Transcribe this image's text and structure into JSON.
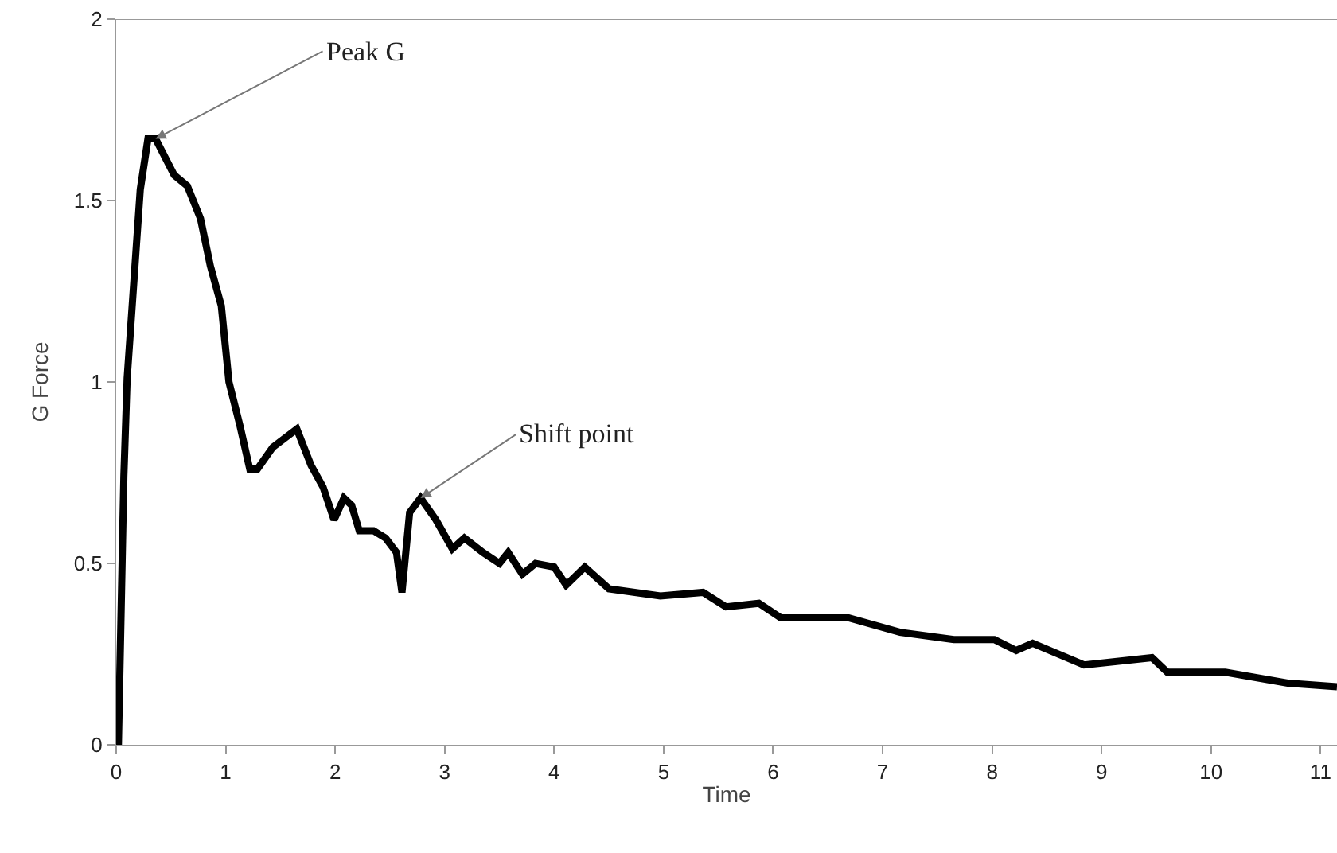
{
  "chart_data": {
    "type": "line",
    "xlabel": "Time",
    "ylabel": "G Force",
    "xlim": [
      0,
      11.15
    ],
    "ylim": [
      0,
      2
    ],
    "xticks": [
      0,
      1,
      2,
      3,
      4,
      5,
      6,
      7,
      8,
      9,
      10,
      11
    ],
    "yticks": [
      0,
      0.5,
      1,
      1.5,
      2
    ],
    "grid": false,
    "legend": false,
    "marker": "none",
    "line_style": "solid",
    "annotations": [
      {
        "text": "Peak G",
        "x": 0.36,
        "y": 1.67
      },
      {
        "text": "Shift point",
        "x": 2.78,
        "y": 0.68
      }
    ],
    "series": [
      {
        "color": "#000000",
        "x": [
          0.02,
          0.07,
          0.1,
          0.22,
          0.29,
          0.36,
          0.53,
          0.65,
          0.77,
          0.86,
          0.96,
          1.03,
          1.13,
          1.22,
          1.29,
          1.43,
          1.65,
          1.78,
          1.89,
          1.99,
          2.08,
          2.15,
          2.22,
          2.35,
          2.46,
          2.56,
          2.61,
          2.68,
          2.78,
          2.92,
          3.07,
          3.18,
          3.35,
          3.5,
          3.58,
          3.71,
          3.83,
          4.0,
          4.11,
          4.28,
          4.5,
          4.97,
          5.36,
          5.57,
          5.87,
          6.07,
          6.69,
          7.16,
          7.65,
          8.02,
          8.22,
          8.37,
          8.84,
          9.46,
          9.6,
          10.13,
          10.7,
          11.15
        ],
        "values": [
          0,
          0.74,
          1.01,
          1.53,
          1.67,
          1.67,
          1.57,
          1.54,
          1.45,
          1.32,
          1.21,
          1.0,
          0.88,
          0.76,
          0.76,
          0.82,
          0.87,
          0.77,
          0.71,
          0.62,
          0.68,
          0.66,
          0.59,
          0.59,
          0.57,
          0.53,
          0.42,
          0.64,
          0.68,
          0.62,
          0.54,
          0.57,
          0.53,
          0.5,
          0.53,
          0.47,
          0.5,
          0.49,
          0.44,
          0.49,
          0.43,
          0.41,
          0.42,
          0.38,
          0.39,
          0.35,
          0.35,
          0.31,
          0.29,
          0.29,
          0.26,
          0.28,
          0.22,
          0.24,
          0.2,
          0.2,
          0.17,
          0.16
        ]
      }
    ]
  }
}
